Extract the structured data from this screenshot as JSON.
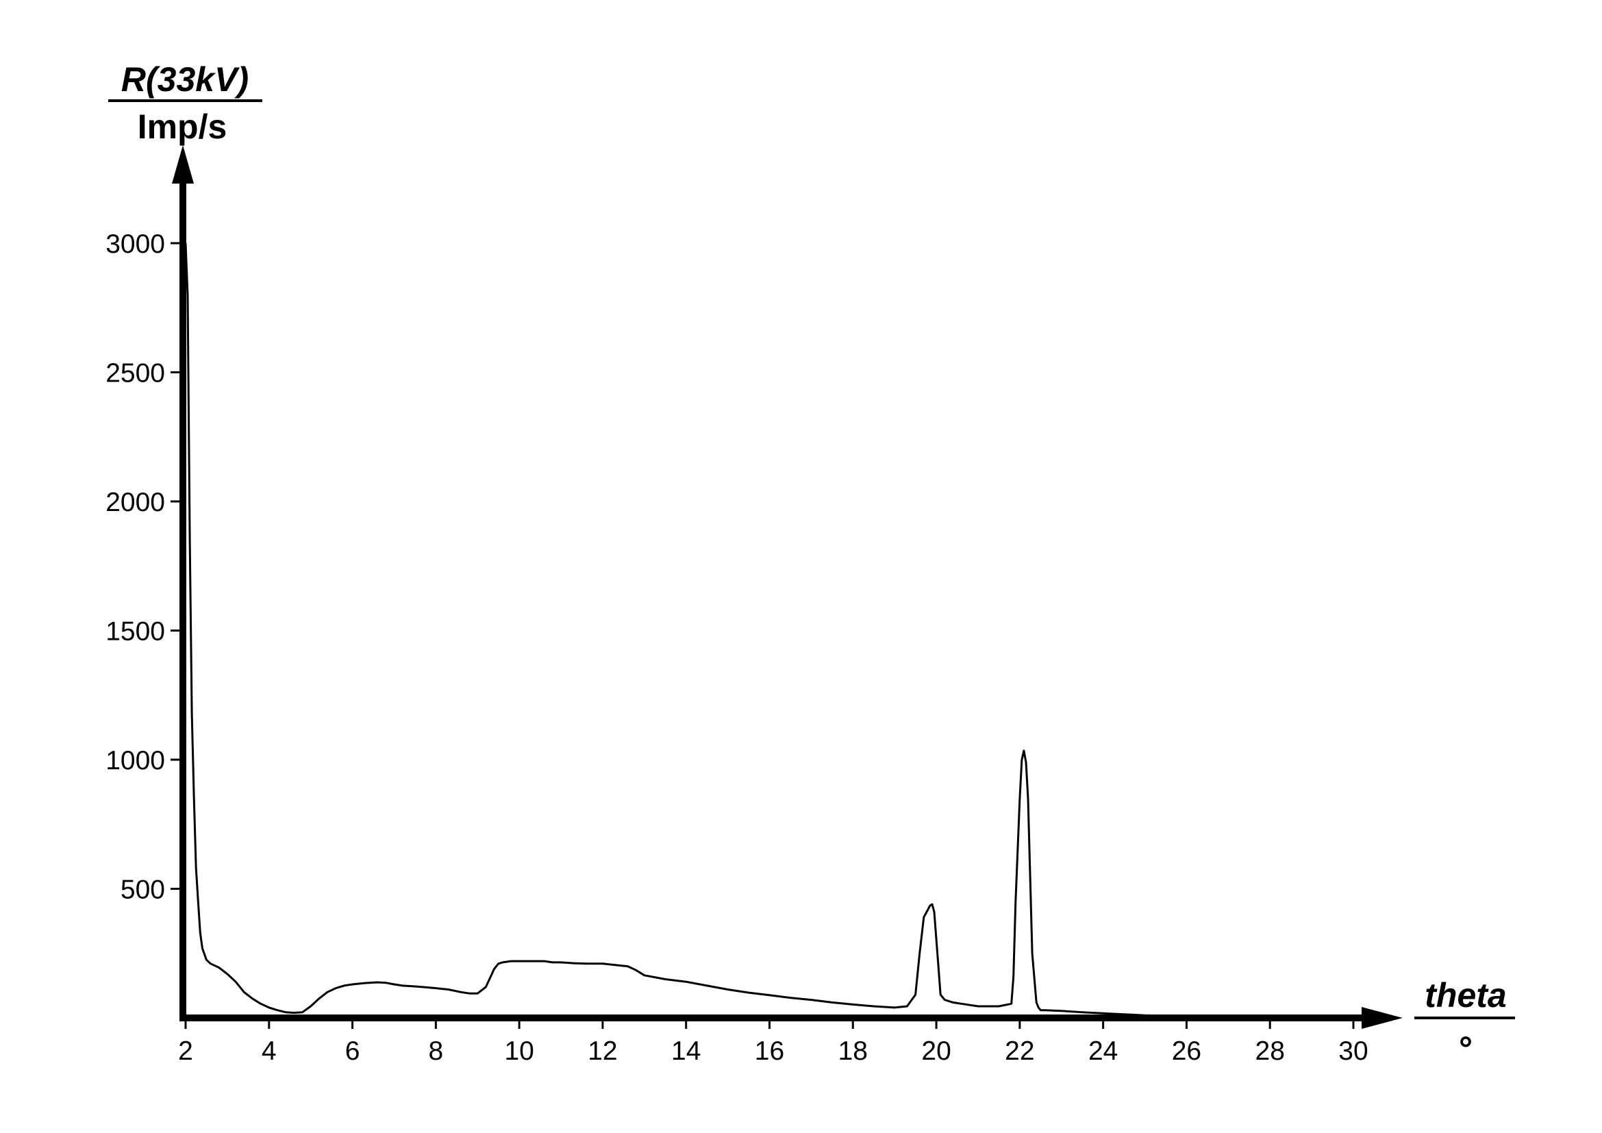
{
  "chart_data": {
    "type": "line",
    "ylabel_numerator": "R(33kV)",
    "ylabel_denominator": "Imp/s",
    "xlabel_numerator": "theta",
    "xlabel_denominator": "°",
    "xlim": [
      2,
      30
    ],
    "ylim": [
      0,
      3000
    ],
    "grid": false,
    "x_ticks": [
      "2",
      "4",
      "6",
      "8",
      "10",
      "12",
      "14",
      "16",
      "18",
      "20",
      "22",
      "24",
      "26",
      "28",
      "30"
    ],
    "y_ticks": [
      "500",
      "1000",
      "1500",
      "2000",
      "2500",
      "3000"
    ],
    "series": [
      {
        "color": "#000000",
        "x": [
          2.0,
          2.05,
          2.1,
          2.15,
          2.2,
          2.25,
          2.3,
          2.35,
          2.4,
          2.5,
          2.6,
          2.8,
          3.0,
          3.2,
          3.4,
          3.6,
          3.8,
          4.0,
          4.2,
          4.4,
          4.6,
          4.8,
          5.0,
          5.2,
          5.4,
          5.6,
          5.8,
          6.0,
          6.3,
          6.6,
          6.8,
          7.0,
          7.2,
          7.5,
          7.8,
          8.0,
          8.3,
          8.6,
          8.8,
          9.0,
          9.2,
          9.4,
          9.5,
          9.6,
          9.8,
          10.0,
          10.3,
          10.6,
          10.8,
          11.0,
          11.3,
          11.6,
          12.0,
          12.3,
          12.6,
          12.8,
          13.0,
          13.5,
          14.0,
          14.5,
          15.0,
          15.5,
          16.0,
          16.5,
          17.0,
          17.5,
          18.0,
          18.5,
          19.0,
          19.3,
          19.5,
          19.6,
          19.7,
          19.8,
          19.85,
          19.9,
          19.95,
          20.05,
          20.1,
          20.2,
          20.4,
          20.6,
          21.0,
          21.5,
          21.8,
          21.85,
          21.9,
          22.0,
          22.05,
          22.1,
          22.15,
          22.2,
          22.3,
          22.4,
          22.45,
          22.5,
          22.6,
          23.0,
          23.5,
          24.0,
          24.5,
          25.0,
          25.5,
          26.0,
          27.0,
          28.0,
          28.7
        ],
        "values": [
          3000,
          2800,
          1850,
          1180,
          850,
          580,
          450,
          330,
          270,
          225,
          210,
          195,
          170,
          140,
          100,
          75,
          55,
          40,
          30,
          22,
          20,
          22,
          45,
          75,
          100,
          115,
          125,
          130,
          135,
          138,
          136,
          130,
          125,
          122,
          118,
          115,
          110,
          100,
          95,
          95,
          120,
          190,
          210,
          215,
          220,
          220,
          220,
          220,
          215,
          215,
          212,
          210,
          210,
          205,
          200,
          185,
          165,
          150,
          140,
          125,
          110,
          98,
          88,
          78,
          70,
          60,
          52,
          45,
          40,
          45,
          90,
          250,
          390,
          420,
          435,
          440,
          410,
          200,
          90,
          70,
          60,
          55,
          45,
          45,
          55,
          160,
          450,
          850,
          1000,
          1035,
          990,
          850,
          250,
          60,
          40,
          30,
          30,
          27,
          22,
          18,
          14,
          10,
          8,
          6,
          4,
          3,
          2
        ]
      }
    ]
  }
}
